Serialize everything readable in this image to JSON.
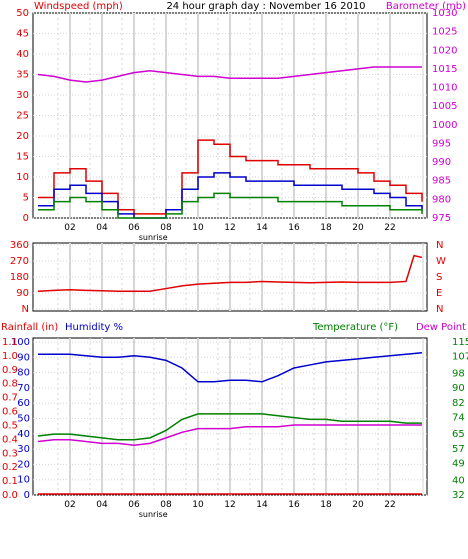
{
  "colors": {
    "red": "#e00000",
    "blue": "#0000cc",
    "magenta": "#d000d0",
    "green": "#008000",
    "black": "#000000",
    "grid": "#d6d6d6",
    "frame_bg": "#f2f2f2"
  },
  "x_ticks": [
    "02",
    "04",
    "06",
    "08",
    "10",
    "12",
    "14",
    "16",
    "18",
    "20",
    "22"
  ],
  "sunrise_label": "sunrise",
  "chart_data": [
    {
      "type": "line",
      "title": "24 hour graph day : November 16 2010",
      "left_axis_label": "Windspeed (mph)",
      "right_axis_label": "Barometer (mb)",
      "ylim_left": [
        0,
        50
      ],
      "ylim_right": [
        975,
        1030
      ],
      "left_ticks": [
        "0",
        "5",
        "10",
        "15",
        "20",
        "25",
        "30",
        "35",
        "40",
        "45",
        "50"
      ],
      "right_ticks": [
        "975",
        "980",
        "985",
        "990",
        "995",
        "1000",
        "1005",
        "1010",
        "1015",
        "1020",
        "1025",
        "1030"
      ],
      "grid": true,
      "x_hours": [
        0,
        1,
        2,
        3,
        4,
        5,
        6,
        7,
        8,
        9,
        10,
        11,
        12,
        13,
        14,
        15,
        16,
        17,
        18,
        19,
        20,
        21,
        22,
        23,
        24
      ],
      "series": [
        {
          "color": "magenta",
          "axis": "right",
          "values": [
            1013.5,
            1013,
            1012,
            1011.5,
            1012,
            1013,
            1014,
            1014.5,
            1014,
            1013.5,
            1013,
            1013,
            1012.5,
            1012.5,
            1012.5,
            1012.5,
            1013,
            1013.5,
            1014,
            1014.5,
            1015,
            1015.5,
            1015.5,
            1015.5,
            1015.5
          ]
        },
        {
          "color": "red",
          "axis": "left",
          "values": [
            5,
            11,
            12,
            9,
            6,
            2,
            1,
            1,
            2,
            11,
            19,
            18,
            15,
            14,
            14,
            13,
            13,
            12,
            12,
            12,
            11,
            9,
            8,
            6,
            4
          ]
        },
        {
          "color": "blue",
          "axis": "left",
          "values": [
            3,
            7,
            8,
            6,
            4,
            1,
            0,
            0,
            2,
            7,
            10,
            11,
            10,
            9,
            9,
            9,
            8,
            8,
            8,
            7,
            7,
            6,
            5,
            3,
            2
          ]
        },
        {
          "color": "green",
          "axis": "left",
          "values": [
            2,
            4,
            5,
            4,
            2,
            0,
            0,
            0,
            1,
            4,
            5,
            6,
            5,
            5,
            5,
            4,
            4,
            4,
            4,
            3,
            3,
            3,
            2,
            2,
            1
          ]
        }
      ]
    },
    {
      "type": "line",
      "left_ticks": [
        "N",
        "90",
        "180",
        "270",
        "360"
      ],
      "right_ticks": [
        "N",
        "E",
        "S",
        "W",
        "N"
      ],
      "ylim": [
        0,
        360
      ],
      "grid": true,
      "x_hours": [
        0,
        1,
        2,
        3,
        4,
        5,
        6,
        7,
        8,
        9,
        10,
        11,
        12,
        13,
        14,
        15,
        16,
        17,
        18,
        19,
        20,
        21,
        22,
        23,
        23.5,
        24
      ],
      "series": [
        {
          "color": "red",
          "values": [
            100,
            105,
            108,
            105,
            103,
            100,
            100,
            100,
            115,
            130,
            140,
            145,
            150,
            150,
            155,
            152,
            150,
            148,
            150,
            152,
            150,
            150,
            150,
            155,
            300,
            290
          ]
        }
      ]
    },
    {
      "type": "line",
      "left_axis_label": "Rainfall (in)",
      "middle_axis_label": "Humidity %",
      "right_axis_label_a": "Temperature (°F)",
      "right_axis_label_b": "Dew Point",
      "left_ticks_rain": [
        "0.0",
        "0.1",
        "0.2",
        "0.3",
        "0.4",
        "0.5",
        "0.6",
        "0.7",
        "0.8",
        "0.9",
        "1.0",
        "1.1"
      ],
      "left_ticks_humidity": [
        "0",
        "10",
        "20",
        "30",
        "40",
        "50",
        "60",
        "70",
        "80",
        "90",
        "100"
      ],
      "right_ticks": [
        "32",
        "40",
        "49",
        "57",
        "65",
        "74",
        "82",
        "90",
        "98",
        "107",
        "115"
      ],
      "ylim_humidity": [
        0,
        100
      ],
      "ylim_temp": [
        32,
        115
      ],
      "grid": true,
      "x_hours": [
        0,
        1,
        2,
        3,
        4,
        5,
        6,
        7,
        8,
        9,
        10,
        11,
        12,
        13,
        14,
        15,
        16,
        17,
        18,
        19,
        20,
        21,
        22,
        23,
        24
      ],
      "series": [
        {
          "color": "blue",
          "axis": "humidity",
          "values": [
            92,
            92,
            92,
            91,
            90,
            90,
            91,
            90,
            88,
            83,
            74,
            74,
            75,
            75,
            74,
            78,
            83,
            85,
            87,
            88,
            89,
            90,
            91,
            92,
            93
          ]
        },
        {
          "color": "green",
          "axis": "temp",
          "values": [
            64,
            65,
            65,
            64,
            63,
            62,
            62,
            63,
            67,
            73,
            76,
            76,
            76,
            76,
            76,
            75,
            74,
            73,
            73,
            72,
            72,
            72,
            72,
            71,
            71
          ]
        },
        {
          "color": "magenta",
          "axis": "temp",
          "values": [
            61,
            62,
            62,
            61,
            60,
            60,
            59,
            60,
            63,
            66,
            68,
            68,
            68,
            69,
            69,
            69,
            70,
            70,
            70,
            70,
            70,
            70,
            70,
            70,
            70
          ]
        },
        {
          "color": "red",
          "axis": "rain",
          "values": [
            0,
            0,
            0,
            0,
            0,
            0,
            0,
            0,
            0,
            0,
            0,
            0,
            0,
            0,
            0,
            0,
            0,
            0,
            0,
            0,
            0,
            0,
            0,
            0,
            0
          ]
        }
      ]
    }
  ]
}
